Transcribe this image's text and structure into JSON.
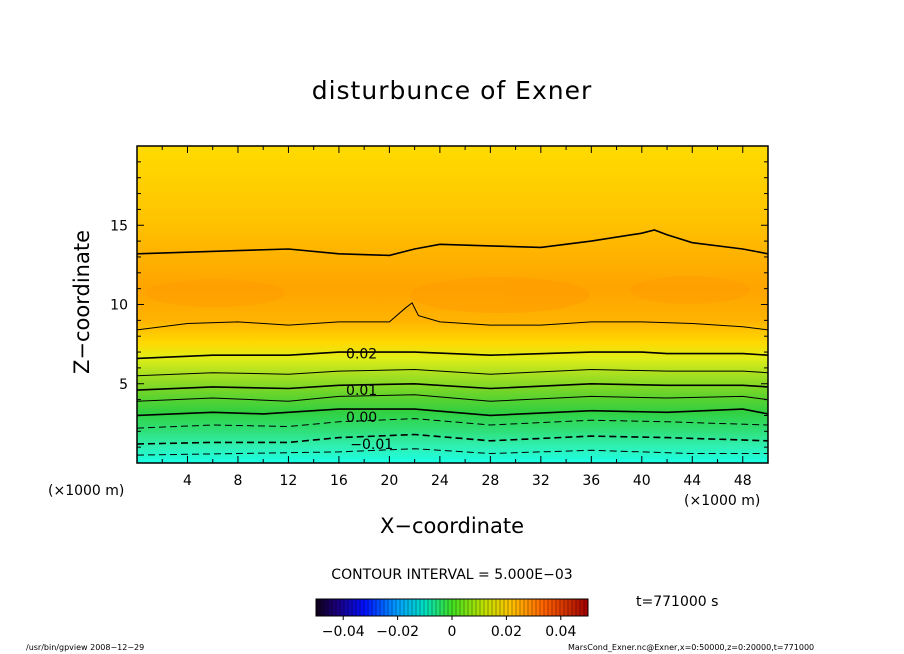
{
  "chart_data": {
    "type": "contour",
    "title": "disturbunce of Exner",
    "xlabel": "X−coordinate",
    "ylabel": "Z−coordinate",
    "x_unit_left": "(×1000 m)",
    "x_unit_right": "(×1000 m)",
    "xlim": [
      0,
      50
    ],
    "ylim": [
      0,
      20
    ],
    "xticks": [
      4,
      8,
      12,
      16,
      20,
      24,
      28,
      32,
      36,
      40,
      44,
      48
    ],
    "yticks": [
      5,
      10,
      15
    ],
    "contour_interval_text": "CONTOUR INTERVAL = 5.000E−03",
    "contour_interval": 0.005,
    "contour_labels": [
      {
        "text": "0.02",
        "x": 17.8,
        "z": 6.9
      },
      {
        "text": "0.01",
        "x": 17.8,
        "z": 4.6
      },
      {
        "text": "0.00",
        "x": 17.8,
        "z": 2.9
      },
      {
        "text": "−0.01",
        "x": 18.6,
        "z": 1.2
      }
    ],
    "contour_lines": [
      {
        "level": -0.015,
        "style": "dashed",
        "points": [
          [
            0,
            0.5
          ],
          [
            8,
            0.6
          ],
          [
            16,
            0.7
          ],
          [
            22,
            0.9
          ],
          [
            28,
            0.6
          ],
          [
            36,
            0.8
          ],
          [
            44,
            0.6
          ],
          [
            50,
            0.6
          ]
        ]
      },
      {
        "level": -0.01,
        "style": "dashed",
        "points": [
          [
            0,
            1.2
          ],
          [
            6,
            1.3
          ],
          [
            12,
            1.3
          ],
          [
            16,
            1.6
          ],
          [
            22,
            1.8
          ],
          [
            28,
            1.4
          ],
          [
            36,
            1.7
          ],
          [
            42,
            1.6
          ],
          [
            50,
            1.4
          ]
        ]
      },
      {
        "level": -0.005,
        "style": "dashed",
        "points": [
          [
            0,
            2.2
          ],
          [
            6,
            2.4
          ],
          [
            12,
            2.3
          ],
          [
            16,
            2.6
          ],
          [
            22,
            2.8
          ],
          [
            28,
            2.4
          ],
          [
            36,
            2.7
          ],
          [
            42,
            2.6
          ],
          [
            50,
            2.4
          ]
        ]
      },
      {
        "level": 0.0,
        "style": "solid",
        "points": [
          [
            0,
            3.0
          ],
          [
            6,
            3.2
          ],
          [
            10,
            3.1
          ],
          [
            16,
            3.4
          ],
          [
            22,
            3.4
          ],
          [
            28,
            3.0
          ],
          [
            36,
            3.3
          ],
          [
            42,
            3.2
          ],
          [
            48,
            3.4
          ],
          [
            50,
            3.1
          ]
        ]
      },
      {
        "level": 0.005,
        "style": "solid",
        "points": [
          [
            0,
            3.9
          ],
          [
            6,
            4.1
          ],
          [
            12,
            3.9
          ],
          [
            16,
            4.2
          ],
          [
            22,
            4.3
          ],
          [
            28,
            3.9
          ],
          [
            36,
            4.2
          ],
          [
            42,
            4.1
          ],
          [
            48,
            4.2
          ],
          [
            50,
            4.0
          ]
        ]
      },
      {
        "level": 0.01,
        "style": "solid",
        "points": [
          [
            0,
            4.6
          ],
          [
            6,
            4.8
          ],
          [
            12,
            4.7
          ],
          [
            16,
            4.9
          ],
          [
            22,
            5.0
          ],
          [
            28,
            4.7
          ],
          [
            36,
            5.0
          ],
          [
            42,
            4.9
          ],
          [
            48,
            4.9
          ],
          [
            50,
            4.8
          ]
        ]
      },
      {
        "level": 0.015,
        "style": "solid",
        "points": [
          [
            0,
            5.5
          ],
          [
            6,
            5.7
          ],
          [
            12,
            5.6
          ],
          [
            16,
            5.8
          ],
          [
            22,
            5.9
          ],
          [
            28,
            5.6
          ],
          [
            36,
            5.9
          ],
          [
            42,
            5.8
          ],
          [
            48,
            5.8
          ],
          [
            50,
            5.7
          ]
        ]
      },
      {
        "level": 0.02,
        "style": "solid",
        "points": [
          [
            0,
            6.6
          ],
          [
            6,
            6.8
          ],
          [
            12,
            6.8
          ],
          [
            16,
            7.0
          ],
          [
            22,
            7.0
          ],
          [
            28,
            6.8
          ],
          [
            36,
            7.0
          ],
          [
            40,
            7.0
          ],
          [
            42,
            6.9
          ],
          [
            48,
            6.9
          ],
          [
            50,
            6.8
          ]
        ]
      },
      {
        "level": 0.025,
        "style": "solid",
        "points": [
          [
            0,
            8.4
          ],
          [
            4,
            8.8
          ],
          [
            8,
            8.9
          ],
          [
            12,
            8.7
          ],
          [
            16,
            8.9
          ],
          [
            20,
            8.9
          ],
          [
            21.3,
            9.8
          ],
          [
            21.8,
            10.1
          ],
          [
            22.3,
            9.3
          ],
          [
            24,
            8.9
          ],
          [
            28,
            8.7
          ],
          [
            32,
            8.7
          ],
          [
            36,
            8.9
          ],
          [
            40,
            8.9
          ],
          [
            44,
            8.8
          ],
          [
            48,
            8.6
          ],
          [
            50,
            8.4
          ]
        ]
      },
      {
        "level": 0.03,
        "style": "solid",
        "points": [
          [
            0,
            13.2
          ],
          [
            4,
            13.3
          ],
          [
            8,
            13.4
          ],
          [
            12,
            13.5
          ],
          [
            16,
            13.2
          ],
          [
            20,
            13.1
          ],
          [
            22,
            13.5
          ],
          [
            24,
            13.8
          ],
          [
            28,
            13.7
          ],
          [
            32,
            13.6
          ],
          [
            36,
            14.0
          ],
          [
            40,
            14.5
          ],
          [
            41,
            14.7
          ],
          [
            42,
            14.4
          ],
          [
            44,
            13.9
          ],
          [
            48,
            13.5
          ],
          [
            50,
            13.2
          ]
        ]
      }
    ],
    "colorbar": {
      "min": -0.05,
      "max": 0.05,
      "tick_values": [
        -0.04,
        -0.02,
        0,
        0.02,
        0.04
      ],
      "tick_labels": [
        "−0.04",
        "−0.02",
        "0",
        "0.02",
        "0.04"
      ]
    },
    "time_label": "t=771000  s",
    "footer_left": "/usr/bin/gpview   2008−12−29",
    "footer_right": "MarsCond_Exner.nc@Exner,x=0:50000,z=0:20000,t=771000"
  }
}
